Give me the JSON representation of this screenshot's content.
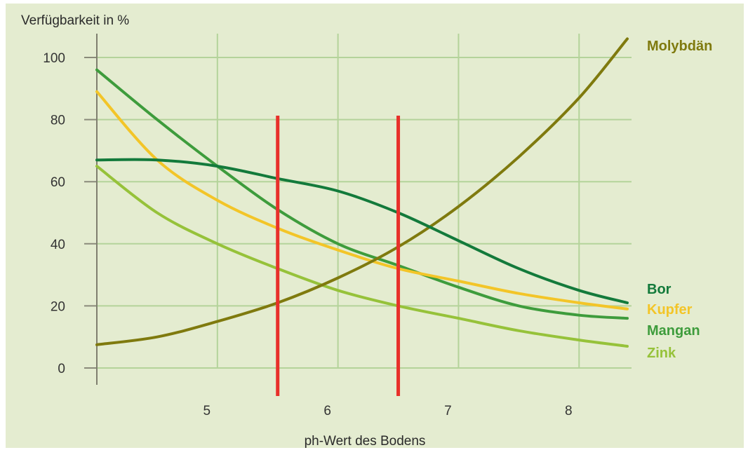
{
  "chart_data": {
    "type": "line",
    "ylabel": "Verfügbarkeit in %",
    "xlabel": "ph-Wert des Bodens",
    "xlim": [
      4.0,
      8.4
    ],
    "ylim": [
      0,
      100
    ],
    "x_ticks": [
      5,
      6,
      7,
      8
    ],
    "y_ticks": [
      0,
      20,
      40,
      60,
      80,
      100
    ],
    "grid": true,
    "legend": "right, labels at line ends",
    "colors": {
      "background": "#e4ecd0",
      "grid": "#b4d39a",
      "marker_line": "#e8302a"
    },
    "series": [
      {
        "name": "Molybdän",
        "color": "#7f7a0e",
        "x": [
          4.0,
          4.5,
          5.0,
          5.5,
          6.0,
          6.5,
          7.0,
          7.5,
          8.0,
          8.4
        ],
        "y": [
          7.5,
          10,
          15,
          21,
          29,
          39,
          52,
          68,
          87,
          106
        ]
      },
      {
        "name": "Bor",
        "color": "#137a3b",
        "x": [
          4.0,
          4.5,
          5.0,
          5.5,
          6.0,
          6.5,
          7.0,
          7.5,
          8.0,
          8.4
        ],
        "y": [
          67,
          67,
          65,
          61,
          57,
          50,
          41,
          32,
          25,
          21
        ]
      },
      {
        "name": "Kupfer",
        "color": "#f3c528",
        "x": [
          4.0,
          4.5,
          5.0,
          5.5,
          6.0,
          6.5,
          7.0,
          7.5,
          8.0,
          8.4
        ],
        "y": [
          89,
          67,
          54,
          45,
          38,
          32,
          28,
          24,
          21,
          19
        ]
      },
      {
        "name": "Mangan",
        "color": "#3e9c3c",
        "x": [
          4.0,
          4.5,
          5.0,
          5.5,
          6.0,
          6.5,
          7.0,
          7.5,
          8.0,
          8.4
        ],
        "y": [
          96,
          80,
          65,
          51,
          40,
          33,
          26,
          20,
          17,
          16
        ]
      },
      {
        "name": "Zink",
        "color": "#96c23a",
        "x": [
          4.0,
          4.5,
          5.0,
          5.5,
          6.0,
          6.5,
          7.0,
          7.5,
          8.0,
          8.4
        ],
        "y": [
          65,
          50,
          40,
          32,
          25,
          20,
          16,
          12,
          9,
          7
        ]
      }
    ],
    "reference_lines_x": [
      5.5,
      6.5
    ]
  }
}
